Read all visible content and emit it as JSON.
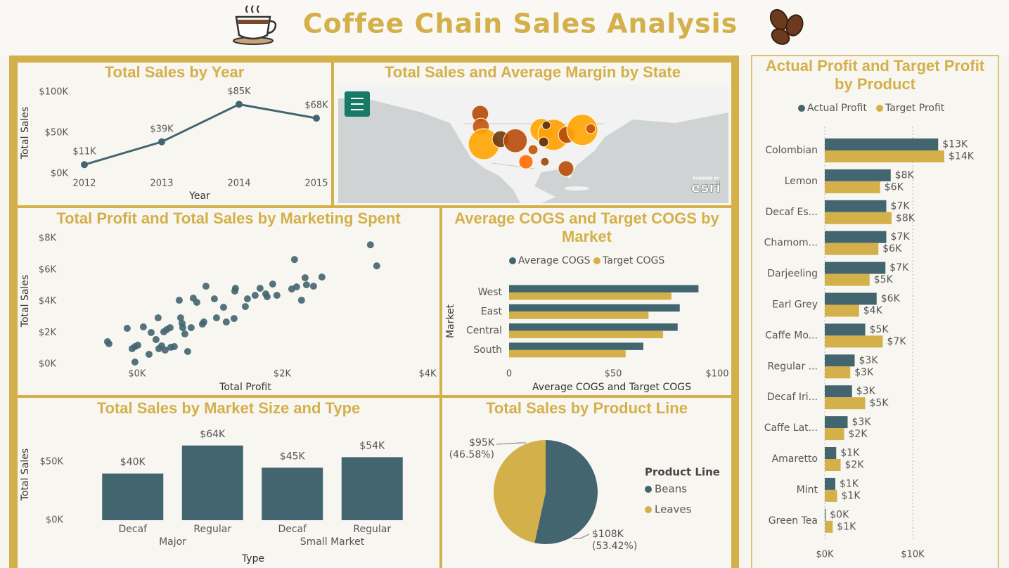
{
  "title": "Coffee Chain Sales Analysis",
  "chart_data": [
    {
      "type": "line",
      "title": "Total Sales by Year",
      "x_label": "Year",
      "y_label": "Total Sales",
      "x": [
        2012,
        2013,
        2014,
        2015
      ],
      "values": [
        11000,
        39000,
        85000,
        68000
      ],
      "value_labels": [
        "$11K",
        "$39K",
        "$85K",
        "$68K"
      ],
      "color": "#436570",
      "xlim": [
        2012,
        2015
      ],
      "xticks": [
        2012,
        2013,
        2014,
        2015
      ],
      "ylim": [
        0,
        100000
      ],
      "yticks": [
        {
          "value": 0,
          "label": "$0K"
        },
        {
          "value": 50000,
          "label": "$50K"
        },
        {
          "value": 100000,
          "label": "$100K"
        }
      ]
    },
    {
      "type": "map",
      "title": "Total Sales and Average Margin by State",
      "attribution_note": "POWERED BY",
      "attribution": "esri",
      "points": [
        {
          "lon": -116.9,
          "lat": 47.7,
          "sales": 7000,
          "color": "#b34a0a"
        },
        {
          "lon": -116.6,
          "lat": 43.6,
          "sales": 7000,
          "color": "#c2530c"
        },
        {
          "lon": -115.4,
          "lat": 37.9,
          "sales": 24000,
          "color": "#ffa500"
        },
        {
          "lon": -108.6,
          "lat": 39.5,
          "sales": 7000,
          "color": "#6b3a10"
        },
        {
          "lon": -102.6,
          "lat": 39.0,
          "sales": 14000,
          "color": "#b84a0a"
        },
        {
          "lon": -92.0,
          "lat": 42.5,
          "sales": 13000,
          "color": "#ffa500"
        },
        {
          "lon": -87.1,
          "lat": 40.9,
          "sales": 24000,
          "color": "#ffa000"
        },
        {
          "lon": -81.7,
          "lat": 40.9,
          "sales": 7000,
          "color": "#b34a0a"
        },
        {
          "lon": -75.4,
          "lat": 42.5,
          "sales": 24000,
          "color": "#ffa500"
        },
        {
          "lon": -72.0,
          "lat": 42.9,
          "sales": 2400,
          "color": "#c2530c"
        },
        {
          "lon": -95.4,
          "lat": 36.1,
          "sales": 2400,
          "color": "#c2530c"
        },
        {
          "lon": -98.3,
          "lat": 32.2,
          "sales": 5000,
          "color": "#ff6a00"
        },
        {
          "lon": -90.6,
          "lat": 32.2,
          "sales": 1800,
          "color": "#a0450a"
        },
        {
          "lon": -82.0,
          "lat": 30.0,
          "sales": 6000,
          "color": "#b84a0a"
        },
        {
          "lon": -91.1,
          "lat": 38.6,
          "sales": 2400,
          "color": "#5c3010"
        },
        {
          "lon": -90.0,
          "lat": 44.0,
          "sales": 1800,
          "color": "#5c3010"
        }
      ]
    },
    {
      "type": "scatter",
      "title": "Total Profit and Total Sales by Marketing Spent",
      "x_label": "Total Profit",
      "y_label": "Total Sales",
      "color": "#436570",
      "x": [
        -407,
        -387,
        -136,
        -29,
        -68,
        -29,
        10,
        87,
        165,
        194,
        261,
        290,
        300,
        339,
        368,
        387,
        407,
        455,
        465,
        513,
        581,
        600,
        620,
        629,
        658,
        697,
        745,
        774,
        823,
        900,
        920,
        949,
        1065,
        1094,
        1191,
        1229,
        1336,
        1346,
        1355,
        1491,
        1520,
        1626,
        1694,
        1772,
        1791,
        1868,
        1926,
        2130,
        2168,
        2197,
        2265,
        2314,
        2333,
        2430,
        2546,
        3214,
        3301
      ],
      "values": [
        1429,
        1295,
        2277,
        134,
        982,
        1116,
        1205,
        2366,
        625,
        2009,
        1563,
        2946,
        982,
        1161,
        2054,
        893,
        2188,
        2321,
        1071,
        1116,
        4063,
        2946,
        2589,
        2321,
        1920,
        804,
        2321,
        4196,
        3929,
        2545,
        2679,
        4955,
        4152,
        2946,
        3616,
        2679,
        2902,
        4643,
        4821,
        3661,
        4152,
        4375,
        4821,
        4464,
        4286,
        5089,
        4375,
        4777,
        6652,
        4911,
        4063,
        5491,
        5045,
        4955,
        5536,
        7589,
        6250
      ],
      "xlim": [
        -500,
        4000
      ],
      "xticks": [
        {
          "value": 0,
          "label": "$0K"
        },
        {
          "value": 2000,
          "label": "$2K"
        },
        {
          "value": 4000,
          "label": "$4K"
        }
      ],
      "ylim": [
        0,
        8000
      ],
      "yticks": [
        {
          "value": 0,
          "label": "$0K"
        },
        {
          "value": 2000,
          "label": "$2K"
        },
        {
          "value": 4000,
          "label": "$4K"
        },
        {
          "value": 6000,
          "label": "$6K"
        },
        {
          "value": 8000,
          "label": "$8K"
        }
      ]
    },
    {
      "type": "hbar",
      "title": "Average COGS and Target COGS by Market",
      "x_label": "Average COGS and Target COGS",
      "y_label": "Market",
      "categories": [
        "West",
        "East",
        "Central",
        "South"
      ],
      "series": [
        {
          "name": "Average COGS",
          "color": "#436570",
          "values": [
            91,
            82,
            81,
            64.5
          ]
        },
        {
          "name": "Target COGS",
          "color": "#d4b04a",
          "values": [
            78,
            67,
            74,
            56
          ]
        }
      ],
      "xlim": [
        0,
        100
      ],
      "xticks": [
        0,
        {
          "value": 50,
          "label": "$50"
        },
        {
          "value": 100,
          "label": "$100"
        }
      ],
      "legend": "top"
    },
    {
      "type": "bar",
      "title": "Total Sales by Market Size and Type",
      "x_label": "Type",
      "y_label": "Total Sales",
      "groups": [
        {
          "label": "Major",
          "categories": [
            "Decaf",
            "Regular"
          ]
        },
        {
          "label": "Small Market",
          "categories": [
            "Decaf",
            "Regular"
          ]
        }
      ],
      "values": [
        40000,
        64000,
        45000,
        54000
      ],
      "value_labels": [
        "$40K",
        "$64K",
        "$45K",
        "$54K"
      ],
      "color": "#436570",
      "ylim": [
        0,
        75000
      ],
      "yticks": [
        {
          "value": 0,
          "label": "$0K"
        },
        {
          "value": 50000,
          "label": "$50K"
        }
      ]
    },
    {
      "type": "pie",
      "title": "Total Sales by Product Line",
      "legend_title": "Product Line",
      "categories": [
        "Beans",
        "Leaves"
      ],
      "values": [
        108440,
        94560
      ],
      "value_labels": [
        "$108K",
        "$95K"
      ],
      "percent_labels": [
        "(53.42%)",
        "(46.58%)"
      ],
      "colors": [
        "#436570",
        "#d4b04a"
      ],
      "legend": "right"
    },
    {
      "type": "hbar",
      "title": "Actual Profit and Target Profit by Product",
      "categories": [
        "Colombian",
        "Lemon",
        "Decaf Es...",
        "Chamom...",
        "Darjeeling",
        "Earl Grey",
        "Caffe Mo...",
        "Regular ...",
        "Decaf Iri...",
        "Caffe Lat...",
        "Amaretto",
        "Mint",
        "Green Tea"
      ],
      "series": [
        {
          "name": "Actual Profit",
          "color": "#436570",
          "values": [
            12900,
            7500,
            7000,
            7000,
            6900,
            5900,
            4600,
            3400,
            3100,
            2600,
            1300,
            1200,
            100
          ],
          "value_labels": [
            "$13K",
            "$8K",
            "$7K",
            "$7K",
            "$7K",
            "$6K",
            "$5K",
            "$3K",
            "$3K",
            "$3K",
            "$1K",
            "$1K",
            "$0K"
          ]
        },
        {
          "name": "Target Profit",
          "color": "#d4b04a",
          "values": [
            13600,
            6300,
            7600,
            6100,
            5100,
            3900,
            6600,
            2900,
            4600,
            2200,
            1800,
            1400,
            900
          ],
          "value_labels": [
            "$14K",
            "$6K",
            "$8K",
            "$6K",
            "$5K",
            "$4K",
            "$7K",
            "$3K",
            "$5K",
            "$2K",
            "$2K",
            "$1K",
            "$1K"
          ]
        }
      ],
      "xlim": [
        0,
        18000
      ],
      "xticks": [
        {
          "value": 0,
          "label": "$0K"
        },
        {
          "value": 10000,
          "label": "$10K"
        }
      ],
      "grid": true,
      "legend": "top"
    }
  ]
}
